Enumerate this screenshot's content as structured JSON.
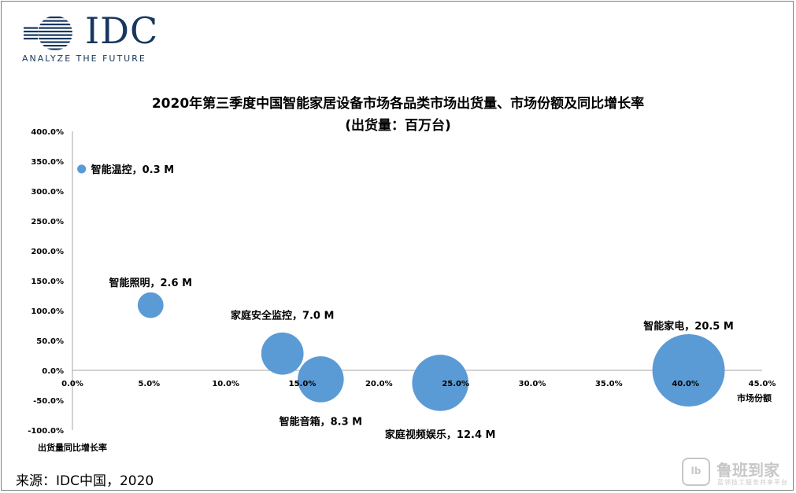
{
  "logo": {
    "word": "IDC",
    "tagline": "ANALYZE THE FUTURE",
    "color": "#17375e"
  },
  "source": "来源：IDC中国，2020",
  "watermark": {
    "name": "鲁班到家",
    "sub": "蓝领技工服务共享平台"
  },
  "chart_data": {
    "type": "bubble",
    "title": "2020年第三季度中国智能家居设备市场各品类市场出货量、市场份额及同比增长率",
    "subtitle": "(出货量：百万台)",
    "xlabel": "市场份额",
    "ylabel": "出货量同比增长率",
    "xlim": [
      0,
      45
    ],
    "ylim": [
      -100,
      400
    ],
    "x_ticks": [
      "0.0%",
      "5.0%",
      "10.0%",
      "15.0%",
      "20.0%",
      "25.0%",
      "30.0%",
      "35.0%",
      "40.0%",
      "45.0%"
    ],
    "y_ticks": [
      "400.0%",
      "350.0%",
      "300.0%",
      "250.0%",
      "200.0%",
      "150.0%",
      "100.0%",
      "50.0%",
      "0.0%",
      "-50.0%",
      "-100.0%"
    ],
    "bubble_color": "#5b9bd5",
    "grid": false,
    "points": [
      {
        "name": "智能温控",
        "label": "智能温控，0.3 M",
        "x": 0.6,
        "y": 337,
        "size": 0.3
      },
      {
        "name": "智能照明",
        "label": "智能照明，2.6 M",
        "x": 5.1,
        "y": 109,
        "size": 2.6
      },
      {
        "name": "家庭安全监控",
        "label": "家庭安全监控，7.0 M",
        "x": 13.7,
        "y": 28,
        "size": 7.0
      },
      {
        "name": "智能音箱",
        "label": "智能音箱，8.3 M",
        "x": 16.2,
        "y": -15,
        "size": 8.3
      },
      {
        "name": "家庭视频娱乐",
        "label": "家庭视频娱乐，12.4 M",
        "x": 24.0,
        "y": -21,
        "size": 12.4
      },
      {
        "name": "智能家电",
        "label": "智能家电，20.5 M",
        "x": 40.2,
        "y": 0,
        "size": 20.5
      }
    ]
  }
}
